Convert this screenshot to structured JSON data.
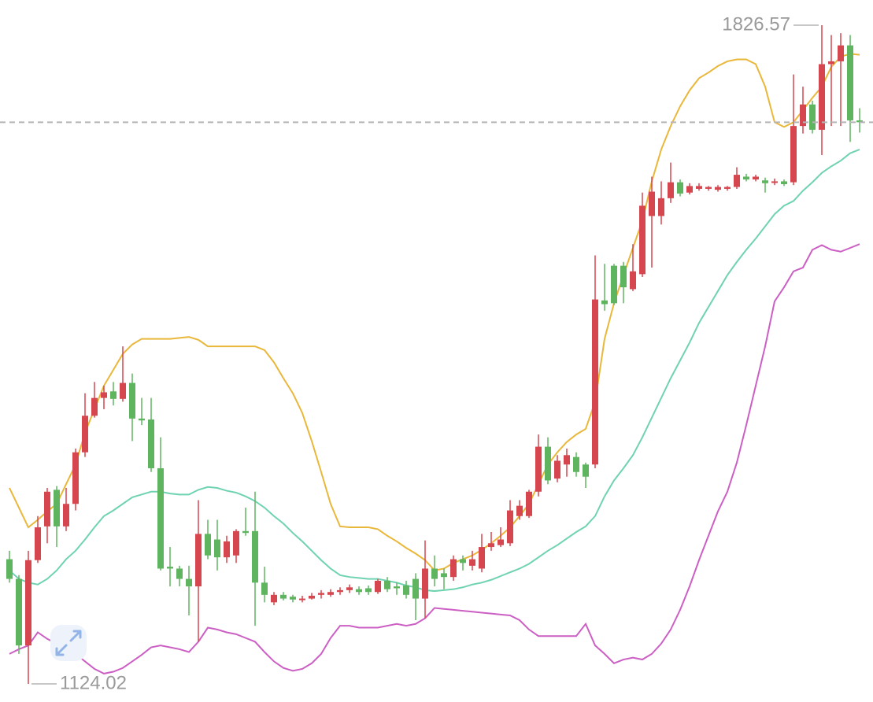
{
  "chart_data": {
    "type": "candlestick",
    "open": [
      1257,
      1236,
      1165,
      1256,
      1292,
      1331,
      1292,
      1316,
      1371,
      1410,
      1429,
      1436,
      1428,
      1445,
      1407,
      1406,
      1354,
      1249,
      1247,
      1236,
      1228,
      1284,
      1278,
      1259,
      1261,
      1287,
      1287,
      1232,
      1211,
      1219,
      1217,
      1214,
      1215,
      1219,
      1219,
      1222,
      1224,
      1225,
      1226,
      1222,
      1234,
      1228,
      1229,
      1236,
      1215,
      1247,
      1242,
      1238,
      1257,
      1250,
      1247,
      1270,
      1272,
      1274,
      1303,
      1303,
      1329,
      1377,
      1343,
      1358,
      1366,
      1358,
      1358,
      1533,
      1570,
      1570,
      1545,
      1561,
      1623,
      1623,
      1642,
      1659,
      1648,
      1652,
      1652,
      1651,
      1652,
      1654,
      1665,
      1662,
      1661,
      1659,
      1660,
      1659,
      1719,
      1742,
      1715,
      1785,
      1788,
      1805,
      1725
    ],
    "high": [
      1266,
      1240,
      1266,
      1303,
      1333,
      1335,
      1333,
      1375,
      1434,
      1446,
      1442,
      1446,
      1484,
      1455,
      1429,
      1429,
      1387,
      1270,
      1250,
      1250,
      1320,
      1299,
      1299,
      1282,
      1289,
      1312,
      1329,
      1249,
      1222,
      1222,
      1219,
      1218,
      1221,
      1224,
      1225,
      1227,
      1230,
      1228,
      1229,
      1236,
      1238,
      1232,
      1234,
      1242,
      1277,
      1261,
      1247,
      1261,
      1261,
      1266,
      1284,
      1286,
      1291,
      1320,
      1320,
      1331,
      1390,
      1387,
      1368,
      1375,
      1371,
      1360,
      1581,
      1572,
      1572,
      1574,
      1593,
      1648,
      1665,
      1660,
      1680,
      1662,
      1658,
      1658,
      1655,
      1656,
      1655,
      1675,
      1668,
      1667,
      1664,
      1663,
      1662,
      1774,
      1761,
      1746,
      1826.57,
      1816,
      1818,
      1816,
      1738
    ],
    "low": [
      1232,
      1156,
      1124.02,
      1253,
      1274,
      1270,
      1287,
      1309,
      1366,
      1408,
      1417,
      1421,
      1425,
      1383,
      1400,
      1350,
      1245,
      1228,
      1228,
      1197,
      1169,
      1257,
      1245,
      1253,
      1253,
      1282,
      1186,
      1211,
      1208,
      1213,
      1211,
      1211,
      1214,
      1215,
      1217,
      1219,
      1221,
      1219,
      1219,
      1220,
      1222,
      1219,
      1215,
      1192,
      1194,
      1228,
      1225,
      1234,
      1245,
      1245,
      1243,
      1266,
      1270,
      1271,
      1299,
      1301,
      1324,
      1337,
      1339,
      1345,
      1345,
      1333,
      1354,
      1522,
      1528,
      1530,
      1543,
      1558,
      1568,
      1614,
      1637,
      1644,
      1646,
      1650,
      1650,
      1649,
      1650,
      1652,
      1660,
      1660,
      1648,
      1656,
      1655,
      1656,
      1711,
      1711,
      1688,
      1719,
      1719,
      1702,
      1712
    ],
    "close": [
      1236,
      1165,
      1256,
      1291,
      1329,
      1292,
      1316,
      1371,
      1410,
      1429,
      1435,
      1428,
      1445,
      1407,
      1405,
      1354,
      1247,
      1247,
      1236,
      1228,
      1284,
      1261,
      1259,
      1276,
      1287,
      1285,
      1232,
      1219,
      1219,
      1215,
      1214,
      1215,
      1218,
      1221,
      1222,
      1224,
      1227,
      1222,
      1222,
      1234,
      1225,
      1226,
      1219,
      1215,
      1247,
      1236,
      1238,
      1257,
      1253,
      1257,
      1270,
      1274,
      1278,
      1309,
      1314,
      1329,
      1377,
      1341,
      1362,
      1368,
      1350,
      1345,
      1534,
      1529,
      1530,
      1547,
      1564,
      1634,
      1649,
      1642,
      1659,
      1647,
      1655,
      1655,
      1654,
      1654,
      1654,
      1667,
      1662,
      1665,
      1658,
      1660,
      1657,
      1719,
      1742,
      1715,
      1785,
      1788,
      1805,
      1725,
      1723
    ],
    "up_color": "#d5464f",
    "down_color": "#5fb460",
    "series": [
      {
        "color": "#e9b73a",
        "values": [
          1333,
          1312,
          1291,
          1299,
          1308,
          1316,
          1337,
          1358,
          1392,
          1417,
          1442,
          1459,
          1476,
          1486,
          1492,
          1492,
          1492,
          1492,
          1493,
          1494,
          1491,
          1484,
          1484,
          1484,
          1484,
          1484,
          1484,
          1480,
          1467,
          1450,
          1434,
          1413,
          1383,
          1350,
          1316,
          1292,
          1291,
          1291,
          1291,
          1289,
          1282,
          1276,
          1269,
          1263,
          1256,
          1245,
          1247,
          1253,
          1257,
          1261,
          1267,
          1274,
          1282,
          1291,
          1303,
          1316,
          1337,
          1358,
          1371,
          1382,
          1390,
          1396,
          1425,
          1492,
          1530,
          1560,
          1589,
          1618,
          1660,
          1694,
          1719,
          1740,
          1757,
          1770,
          1776,
          1783,
          1788,
          1790,
          1790,
          1785,
          1761,
          1723,
          1718,
          1723,
          1736,
          1749,
          1761,
          1782,
          1793,
          1796,
          1795
        ]
      },
      {
        "color": "#6fd3b0",
        "values": [
          1245,
          1236,
          1232,
          1230,
          1236,
          1245,
          1257,
          1266,
          1278,
          1291,
          1303,
          1309,
          1316,
          1323,
          1326,
          1329,
          1329,
          1327,
          1326,
          1326,
          1331,
          1334,
          1333,
          1330,
          1328,
          1324,
          1319,
          1312,
          1303,
          1295,
          1285,
          1276,
          1266,
          1256,
          1247,
          1240,
          1238,
          1237,
          1236,
          1236,
          1234,
          1232,
          1229,
          1227,
          1224,
          1223,
          1224,
          1225,
          1227,
          1230,
          1232,
          1235,
          1239,
          1243,
          1247,
          1252,
          1259,
          1266,
          1272,
          1279,
          1286,
          1292,
          1303,
          1324,
          1341,
          1354,
          1368,
          1387,
          1408,
          1429,
          1450,
          1469,
          1488,
          1509,
          1526,
          1543,
          1560,
          1574,
          1587,
          1599,
          1612,
          1625,
          1634,
          1639,
          1650,
          1659,
          1669,
          1676,
          1682,
          1690,
          1694
        ]
      },
      {
        "color": "#cc5fc4",
        "values": [
          1156,
          1161,
          1165,
          1179,
          1172,
          1167,
          1163,
          1156,
          1148,
          1140,
          1135,
          1137,
          1141,
          1148,
          1155,
          1163,
          1165,
          1163,
          1161,
          1158,
          1169,
          1184,
          1182,
          1179,
          1177,
          1173,
          1169,
          1158,
          1148,
          1141,
          1138,
          1140,
          1146,
          1156,
          1173,
          1186,
          1186,
          1184,
          1184,
          1184,
          1186,
          1188,
          1186,
          1188,
          1194,
          1205,
          1204,
          1203,
          1202,
          1201,
          1200,
          1199,
          1198,
          1197,
          1192,
          1182,
          1175,
          1175,
          1175,
          1175,
          1175,
          1188,
          1165,
          1156,
          1146,
          1150,
          1152,
          1150,
          1156,
          1167,
          1182,
          1203,
          1228,
          1256,
          1282,
          1308,
          1329,
          1360,
          1400,
          1442,
          1484,
          1532,
          1547,
          1564,
          1568,
          1587,
          1592,
          1587,
          1585,
          1589,
          1593
        ]
      }
    ],
    "ylim": [
      1104.7,
      1853.4
    ]
  }
}
